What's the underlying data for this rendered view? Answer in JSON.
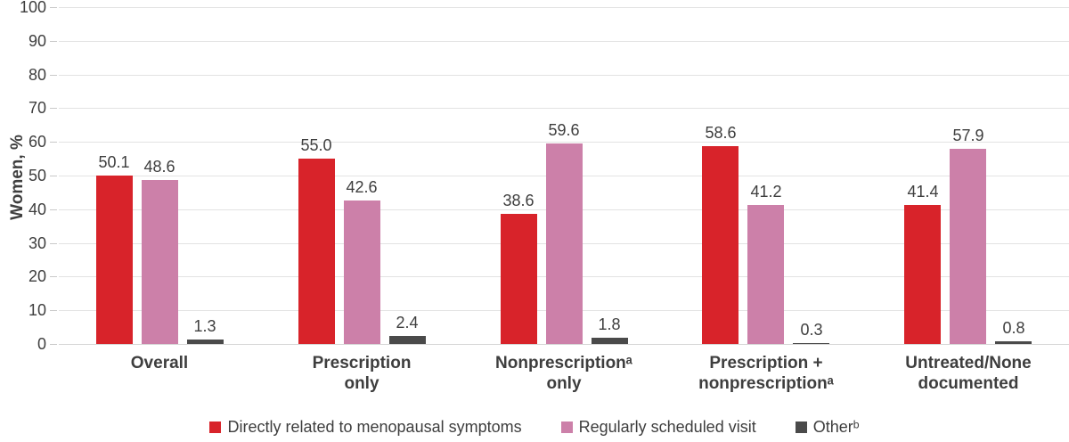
{
  "chart_data": {
    "type": "bar",
    "title": "",
    "xlabel": "",
    "ylabel": "Women, %",
    "ylim": [
      0,
      100
    ],
    "ytick_step": 10,
    "grid": true,
    "legend_position": "bottom",
    "categories": [
      "Overall",
      "Prescription only",
      "Nonprescriptionᵃ only",
      "Prescription + nonprescriptionᵃ",
      "Untreated/None documented"
    ],
    "category_label_lines": [
      [
        "Overall"
      ],
      [
        "Prescription",
        "only"
      ],
      [
        "Nonprescriptionᵃ",
        "only"
      ],
      [
        "Prescription +",
        "nonprescriptionᵃ"
      ],
      [
        "Untreated/None",
        "documented"
      ]
    ],
    "series": [
      {
        "name": "Directly related to menopausal symptoms",
        "color": "#d8232a",
        "values": [
          50.1,
          55.0,
          38.6,
          58.6,
          41.4
        ],
        "labels": [
          "50.1",
          "55.0",
          "38.6",
          "58.6",
          "41.4"
        ]
      },
      {
        "name": "Regularly scheduled visit",
        "color": "#cc80a9",
        "values": [
          48.6,
          42.6,
          59.6,
          41.2,
          57.9
        ],
        "labels": [
          "48.6",
          "42.6",
          "59.6",
          "41.2",
          "57.9"
        ]
      },
      {
        "name": "Otherᵇ",
        "color": "#4a4a4a",
        "values": [
          1.3,
          2.4,
          1.8,
          0.3,
          0.8
        ],
        "labels": [
          "1.3",
          "2.4",
          "1.8",
          "0.3",
          "0.8"
        ]
      }
    ]
  },
  "colors": {
    "text": "#3e3e3e",
    "gridline": "#e3e3e3",
    "baseline": "#d6d6d6",
    "tick_mark": "#c9c9c9"
  }
}
